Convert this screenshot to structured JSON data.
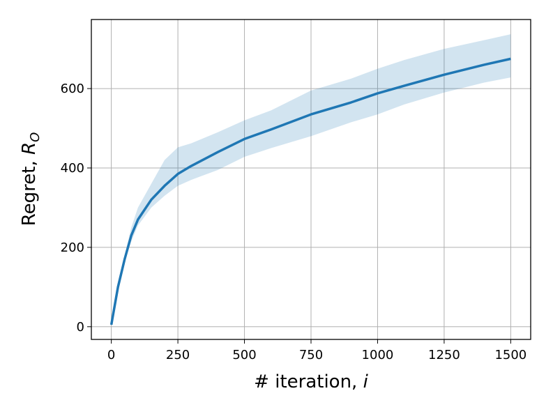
{
  "chart_data": {
    "type": "line",
    "xlabel": [
      "# iteration, ",
      "i"
    ],
    "ylabel": [
      "Regret, ",
      "R",
      "O"
    ],
    "x": [
      0,
      25,
      50,
      75,
      100,
      150,
      200,
      250,
      300,
      400,
      500,
      600,
      750,
      900,
      1000,
      1100,
      1250,
      1400,
      1500
    ],
    "series": [
      {
        "color": "#1f77b4",
        "values": [
          5,
          100,
          170,
          230,
          270,
          320,
          355,
          385,
          405,
          440,
          473,
          497,
          535,
          565,
          588,
          607,
          635,
          660,
          675
        ]
      }
    ],
    "band": {
      "color": "#1f77b4",
      "upper": [
        5,
        110,
        180,
        250,
        300,
        360,
        420,
        452,
        462,
        490,
        520,
        545,
        595,
        625,
        650,
        672,
        700,
        722,
        737
      ],
      "lower": [
        5,
        90,
        165,
        215,
        255,
        300,
        330,
        355,
        370,
        395,
        428,
        450,
        480,
        515,
        535,
        560,
        590,
        615,
        628
      ]
    },
    "xlim": [
      -75,
      1575
    ],
    "ylim": [
      -32,
      774
    ],
    "xticks": [
      0,
      250,
      500,
      750,
      1000,
      1250,
      1500
    ],
    "yticks": [
      0,
      200,
      400,
      600
    ],
    "grid": true
  }
}
